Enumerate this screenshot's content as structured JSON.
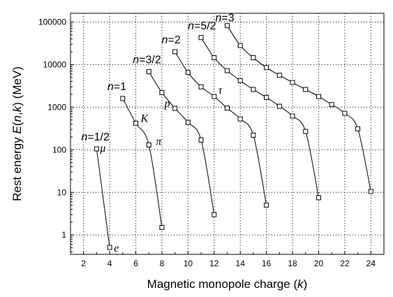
{
  "chart_data": {
    "type": "line",
    "title": "",
    "xlabel": "Magnetic monopole charge (k)",
    "xlabel_parts": [
      "Magnetic monopole charge (",
      "k",
      ")"
    ],
    "ylabel": "Rest energy E(n,k) (MeV)",
    "ylabel_parts": [
      "Rest energy ",
      "E",
      "(",
      "n",
      ",",
      "k",
      ") (MeV)"
    ],
    "x_scale": "linear",
    "y_scale": "log",
    "xlim": [
      1,
      25
    ],
    "ylim": [
      0.35,
      160000
    ],
    "x_ticks": [
      "2",
      "4",
      "6",
      "8",
      "10",
      "12",
      "14",
      "16",
      "18",
      "20",
      "22",
      "24"
    ],
    "y_ticks": [
      "1",
      "10",
      "100",
      "1000",
      "10000",
      "100000"
    ],
    "grid": true,
    "legend": "none",
    "series": [
      {
        "name": "n=1/2",
        "name_parts": [
          "n",
          "=1/2"
        ],
        "points": [
          [
            3,
            105
          ],
          [
            4,
            0.511
          ]
        ]
      },
      {
        "name": "n=1",
        "name_parts": [
          "n",
          "=1"
        ],
        "points": [
          [
            5,
            1600
          ],
          [
            6,
            420
          ],
          [
            7,
            130
          ],
          [
            8,
            1.5
          ]
        ]
      },
      {
        "name": "n=3/2",
        "name_parts": [
          "n",
          "=3/2"
        ],
        "points": [
          [
            7,
            6800
          ],
          [
            8,
            2200
          ],
          [
            9,
            940
          ],
          [
            10,
            440
          ],
          [
            11,
            170
          ],
          [
            12,
            3
          ]
        ]
      },
      {
        "name": "n=2",
        "name_parts": [
          "n",
          "=2"
        ],
        "points": [
          [
            9,
            20000
          ],
          [
            10,
            6500
          ],
          [
            11,
            3000
          ],
          [
            12,
            1780
          ],
          [
            13,
            950
          ],
          [
            14,
            530
          ],
          [
            15,
            220
          ],
          [
            16,
            5
          ]
        ]
      },
      {
        "name": "n=5/2",
        "name_parts": [
          "n",
          "=5/2"
        ],
        "points": [
          [
            11,
            43000
          ],
          [
            12,
            14500
          ],
          [
            13,
            7200
          ],
          [
            14,
            4200
          ],
          [
            15,
            2600
          ],
          [
            16,
            1700
          ],
          [
            17,
            1050
          ],
          [
            18,
            620
          ],
          [
            19,
            270
          ],
          [
            20,
            7.5
          ]
        ]
      },
      {
        "name": "n=3",
        "name_parts": [
          "n",
          "=3"
        ],
        "points": [
          [
            13,
            82000
          ],
          [
            14,
            28000
          ],
          [
            15,
            14500
          ],
          [
            16,
            8500
          ],
          [
            17,
            5600
          ],
          [
            18,
            3800
          ],
          [
            19,
            2600
          ],
          [
            20,
            1780
          ],
          [
            21,
            1150
          ],
          [
            22,
            720
          ],
          [
            23,
            310
          ],
          [
            24,
            10.5
          ]
        ]
      }
    ],
    "annotations": [
      {
        "text": "μ",
        "x": 3,
        "y": 105
      },
      {
        "text": "e",
        "x": 4,
        "y": 0.511
      },
      {
        "text": "K",
        "x": 6,
        "y": 420
      },
      {
        "text": "π",
        "x": 7,
        "y": 130
      },
      {
        "text": "p",
        "x": 9,
        "y": 940
      },
      {
        "text": "τ",
        "x": 12,
        "y": 1780
      }
    ]
  }
}
